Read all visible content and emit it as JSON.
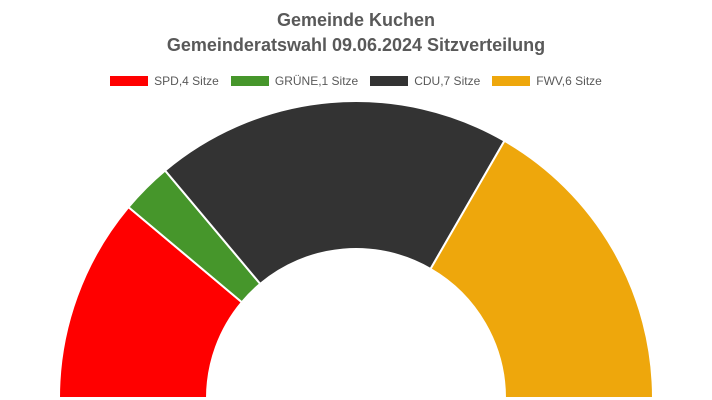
{
  "chart_data": {
    "type": "pie",
    "subtype": "parliament-half-donut",
    "title": "Gemeinde Kuchen",
    "subtitle": "Gemeinderatswahl 09.06.2024 Sitzverteilung",
    "legend_position": "top",
    "series": [
      {
        "name": "SPD",
        "label": "SPD,4 Sitze",
        "value": 4,
        "color": "#ff0000"
      },
      {
        "name": "GRÜNE",
        "label": "GRÜNE,1 Sitze",
        "value": 1,
        "color": "#46962b"
      },
      {
        "name": "CDU",
        "label": "CDU,7 Sitze",
        "value": 7,
        "color": "#333333"
      },
      {
        "name": "FWV",
        "label": "FWV,6 Sitze",
        "value": 6,
        "color": "#eea70c"
      }
    ]
  }
}
